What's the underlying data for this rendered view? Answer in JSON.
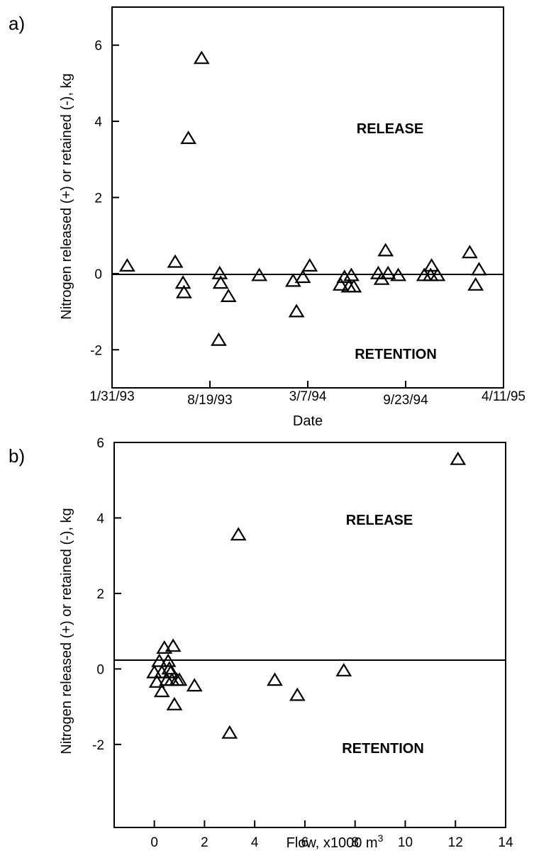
{
  "chart_data": [
    {
      "type": "scatter",
      "panel_label": "a)",
      "xlabel": "Date",
      "ylabel": "Nitrogen released (+) or retained (-), kg",
      "xlim": [
        "1/31/93",
        "4/11/95"
      ],
      "ylim": [
        -3,
        7
      ],
      "xticks": [
        "1/31/93",
        "8/19/93",
        "3/7/94",
        "9/23/94",
        "4/11/95"
      ],
      "yticks": [
        6,
        4,
        2,
        0,
        -2
      ],
      "grid": false,
      "zero_line": true,
      "annotations": {
        "release": "RELEASE",
        "retention": "RETENTION"
      },
      "marker": "open-triangle",
      "points": [
        {
          "x": "3/3/93",
          "y": 0.2
        },
        {
          "x": "6/9/93",
          "y": 0.3
        },
        {
          "x": "6/25/93",
          "y": -0.25
        },
        {
          "x": "6/27/93",
          "y": -0.5
        },
        {
          "x": "7/6/93",
          "y": 3.55
        },
        {
          "x": "8/2/93",
          "y": 5.65
        },
        {
          "x": "9/8/93",
          "y": 0.0
        },
        {
          "x": "9/10/93",
          "y": -0.25
        },
        {
          "x": "9/6/93",
          "y": -1.75
        },
        {
          "x": "9/26/93",
          "y": -0.6
        },
        {
          "x": "11/28/93",
          "y": -0.05
        },
        {
          "x": "2/5/94",
          "y": -0.2
        },
        {
          "x": "2/12/94",
          "y": -1.0
        },
        {
          "x": "2/25/94",
          "y": -0.1
        },
        {
          "x": "3/11/94",
          "y": 0.2
        },
        {
          "x": "5/13/94",
          "y": -0.3
        },
        {
          "x": "5/21/94",
          "y": -0.1
        },
        {
          "x": "5/30/94",
          "y": -0.35
        },
        {
          "x": "6/4/94",
          "y": -0.05
        },
        {
          "x": "6/9/94",
          "y": -0.35
        },
        {
          "x": "7/29/94",
          "y": 0.0
        },
        {
          "x": "8/5/94",
          "y": -0.15
        },
        {
          "x": "8/13/94",
          "y": 0.6
        },
        {
          "x": "8/18/94",
          "y": 0.0
        },
        {
          "x": "9/8/94",
          "y": -0.05
        },
        {
          "x": "10/31/94",
          "y": -0.05
        },
        {
          "x": "11/13/94",
          "y": -0.05
        },
        {
          "x": "11/15/94",
          "y": 0.2
        },
        {
          "x": "11/27/94",
          "y": -0.05
        },
        {
          "x": "2/1/95",
          "y": 0.55
        },
        {
          "x": "2/13/95",
          "y": -0.3
        },
        {
          "x": "2/20/95",
          "y": 0.1
        }
      ]
    },
    {
      "type": "scatter",
      "panel_label": "b)",
      "xlabel": "Flow, x1000 m",
      "xlabel_superscript": "3",
      "ylabel": "Nitrogen released (+) or retained (-), kg",
      "xlim": [
        -1.6,
        14
      ],
      "ylim": [
        -4.2,
        6
      ],
      "xticks": [
        0,
        2,
        4,
        6,
        8,
        10,
        12,
        14
      ],
      "yticks": [
        6,
        4,
        2,
        0,
        -2
      ],
      "grid": false,
      "zero_line": true,
      "annotations": {
        "release": "RELEASE",
        "retention": "RETENTION"
      },
      "marker": "open-triangle",
      "points": [
        {
          "x": 0.0,
          "y": -0.1
        },
        {
          "x": 0.1,
          "y": -0.35
        },
        {
          "x": 0.2,
          "y": 0.2
        },
        {
          "x": 0.3,
          "y": -0.6
        },
        {
          "x": 0.3,
          "y": -0.1
        },
        {
          "x": 0.4,
          "y": 0.55
        },
        {
          "x": 0.5,
          "y": -0.3
        },
        {
          "x": 0.55,
          "y": 0.2
        },
        {
          "x": 0.6,
          "y": 0.0
        },
        {
          "x": 0.65,
          "y": -0.1
        },
        {
          "x": 0.7,
          "y": -0.3
        },
        {
          "x": 0.75,
          "y": 0.6
        },
        {
          "x": 0.8,
          "y": -0.95
        },
        {
          "x": 0.9,
          "y": -0.3
        },
        {
          "x": 1.0,
          "y": -0.3
        },
        {
          "x": 1.6,
          "y": -0.45
        },
        {
          "x": 3.0,
          "y": -1.7
        },
        {
          "x": 3.35,
          "y": 3.55
        },
        {
          "x": 4.8,
          "y": -0.3
        },
        {
          "x": 5.7,
          "y": -0.7
        },
        {
          "x": 7.55,
          "y": -0.05
        },
        {
          "x": 12.1,
          "y": 5.55
        }
      ]
    }
  ]
}
